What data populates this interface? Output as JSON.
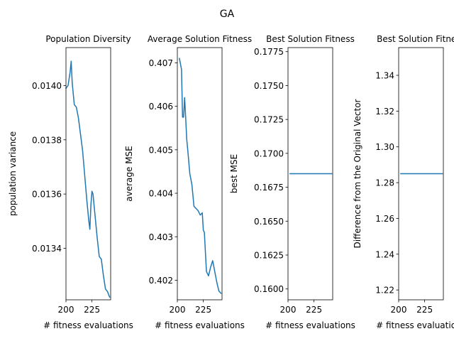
{
  "figure": {
    "suptitle": "GA"
  },
  "colors": {
    "line": "#1f77b4",
    "axes": "#000000",
    "background": "#ffffff"
  },
  "chart_data": [
    {
      "type": "line",
      "title": "Population Diversity",
      "xlabel": "# fitness evaluations",
      "ylabel": "population variance",
      "xlim": [
        200,
        243
      ],
      "ylim": [
        0.01321,
        0.01414
      ],
      "xticks": [
        200,
        225
      ],
      "xtick_labels": [
        "200",
        "225"
      ],
      "yticks": [
        0.0134,
        0.0136,
        0.0138,
        0.014
      ],
      "ytick_labels": [
        "0.0134",
        "0.0136",
        "0.0138",
        "0.0140"
      ],
      "grid": false,
      "series": [
        {
          "x": [
            200,
            202,
            204,
            205,
            206,
            208,
            210,
            212,
            214,
            216,
            218,
            220,
            222,
            223,
            224,
            225,
            226,
            228,
            230,
            232,
            234,
            236,
            238,
            240,
            242
          ],
          "y": [
            0.01399,
            0.014,
            0.01405,
            0.01409,
            0.01401,
            0.01393,
            0.01392,
            0.01388,
            0.01382,
            0.01376,
            0.01367,
            0.01358,
            0.0135,
            0.01347,
            0.01356,
            0.01361,
            0.0136,
            0.01352,
            0.01344,
            0.01337,
            0.01336,
            0.0133,
            0.01325,
            0.01324,
            0.01322
          ]
        }
      ]
    },
    {
      "type": "line",
      "title": "Average Solution Fitness",
      "xlabel": "# fitness evaluations",
      "ylabel": "average MSE",
      "xlim": [
        200,
        243
      ],
      "ylim": [
        0.40155,
        0.40735
      ],
      "xticks": [
        200,
        225
      ],
      "xtick_labels": [
        "200",
        "225"
      ],
      "yticks": [
        0.402,
        0.403,
        0.404,
        0.405,
        0.406,
        0.407
      ],
      "ytick_labels": [
        "0.402",
        "0.403",
        "0.404",
        "0.405",
        "0.406",
        "0.407"
      ],
      "grid": false,
      "series": [
        {
          "x": [
            202,
            204,
            205,
            206,
            207,
            208,
            209,
            210,
            212,
            214,
            216,
            218,
            220,
            222,
            224,
            225,
            226,
            228,
            230,
            232,
            234,
            236,
            238,
            240,
            242
          ],
          "y": [
            0.4071,
            0.40685,
            0.40575,
            0.40575,
            0.4062,
            0.40575,
            0.40525,
            0.405,
            0.40445,
            0.4042,
            0.4037,
            0.40365,
            0.4036,
            0.4035,
            0.40355,
            0.40315,
            0.4031,
            0.4022,
            0.4021,
            0.4023,
            0.40245,
            0.4022,
            0.40195,
            0.40175,
            0.4017
          ]
        }
      ]
    },
    {
      "type": "line",
      "title": "Best Solution Fitness",
      "xlabel": "# fitness evaluations",
      "ylabel": "best MSE",
      "xlim": [
        200,
        243
      ],
      "ylim": [
        0.1592,
        0.1778
      ],
      "xticks": [
        200,
        225
      ],
      "xtick_labels": [
        "200",
        "225"
      ],
      "yticks": [
        0.16,
        0.1625,
        0.165,
        0.1675,
        0.17,
        0.1725,
        0.175,
        0.1775
      ],
      "ytick_labels": [
        "0.1600",
        "0.1625",
        "0.1650",
        "0.1675",
        "0.1700",
        "0.1725",
        "0.1750",
        "0.1775"
      ],
      "grid": false,
      "series": [
        {
          "x": [
            202,
            242
          ],
          "y": [
            0.1685,
            0.1685
          ]
        }
      ]
    },
    {
      "type": "line",
      "title": "Best Solution Fitness",
      "xlabel": "# fitness evaluations",
      "ylabel": "Difference from the Original Vector",
      "xlim": [
        200,
        243
      ],
      "ylim": [
        1.2145,
        1.3555
      ],
      "xticks": [
        200,
        225
      ],
      "xtick_labels": [
        "200",
        "225"
      ],
      "yticks": [
        1.22,
        1.24,
        1.26,
        1.28,
        1.3,
        1.32,
        1.34
      ],
      "ytick_labels": [
        "1.22",
        "1.24",
        "1.26",
        "1.28",
        "1.30",
        "1.32",
        "1.34"
      ],
      "grid": false,
      "series": [
        {
          "x": [
            202,
            242
          ],
          "y": [
            1.285,
            1.285
          ]
        }
      ]
    }
  ]
}
